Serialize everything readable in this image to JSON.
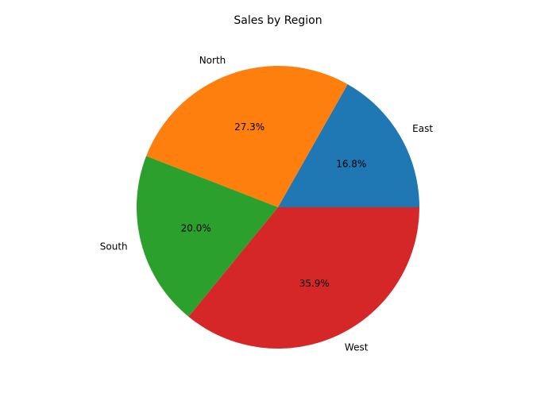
{
  "chart_data": {
    "type": "pie",
    "title": "Sales by Region",
    "categories": [
      "East",
      "North",
      "South",
      "West"
    ],
    "values": [
      16.8,
      27.3,
      20.0,
      35.9
    ],
    "percent_labels": [
      "16.8%",
      "27.3%",
      "20.0%",
      "35.9%"
    ],
    "colors": [
      "#1f77b4",
      "#ff7f0e",
      "#2ca02c",
      "#d62728"
    ],
    "start_angle_deg": 0,
    "direction": "counterclockwise",
    "legend": "none"
  }
}
